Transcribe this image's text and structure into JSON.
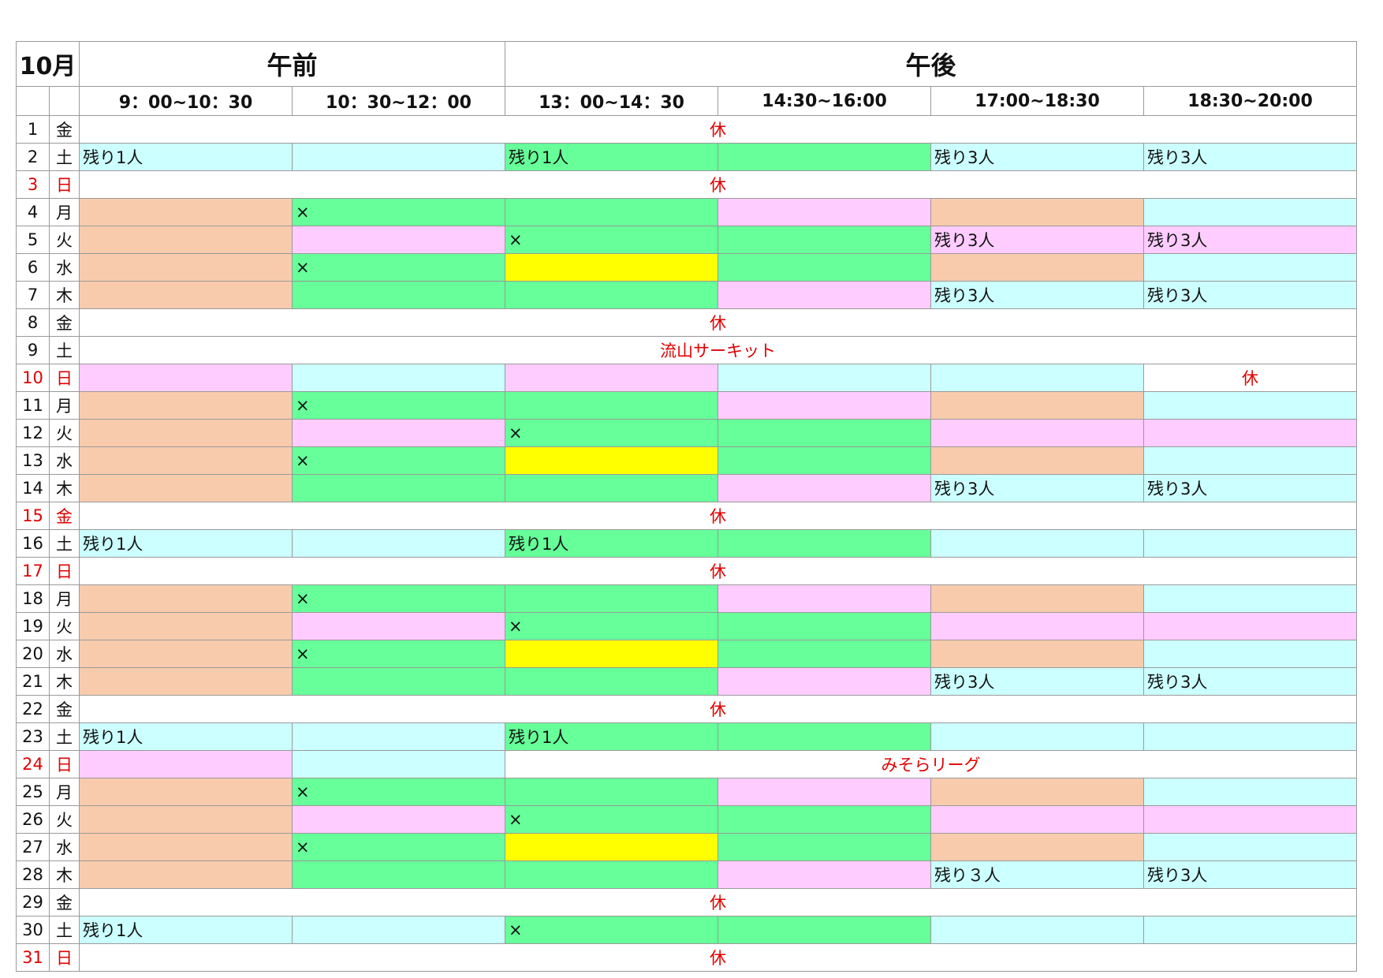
{
  "header": {
    "month": "10月",
    "morning": "午前",
    "afternoon": "午後",
    "slots": [
      "9：00~10：30",
      "10：30~12：00",
      "13：00~14：30",
      "14:30~16:00",
      "17:00~18:30",
      "18:30~20:00"
    ]
  },
  "colors": {
    "o": "#f8cbad",
    "g": "#66ff99",
    "p": "#ffccff",
    "c": "#ccffff",
    "y": "#ffff00",
    "w": "#ffffff",
    "red": "#e00000"
  },
  "rows": [
    {
      "day": "1",
      "wd": "金",
      "red": false,
      "full": "休"
    },
    {
      "day": "2",
      "wd": "土",
      "red": false,
      "cells": [
        {
          "c": "c",
          "t": "残り1人"
        },
        {
          "c": "c",
          "t": ""
        },
        {
          "c": "g",
          "t": "残り1人"
        },
        {
          "c": "g",
          "t": ""
        },
        {
          "c": "c",
          "t": "残り3人"
        },
        {
          "c": "c",
          "t": "残り3人"
        }
      ]
    },
    {
      "day": "3",
      "wd": "日",
      "red": true,
      "full": "休"
    },
    {
      "day": "4",
      "wd": "月",
      "red": false,
      "cells": [
        {
          "c": "o",
          "t": ""
        },
        {
          "c": "g",
          "t": "×"
        },
        {
          "c": "g",
          "t": ""
        },
        {
          "c": "p",
          "t": ""
        },
        {
          "c": "o",
          "t": ""
        },
        {
          "c": "c",
          "t": ""
        }
      ]
    },
    {
      "day": "5",
      "wd": "火",
      "red": false,
      "cells": [
        {
          "c": "o",
          "t": ""
        },
        {
          "c": "p",
          "t": ""
        },
        {
          "c": "g",
          "t": "×"
        },
        {
          "c": "g",
          "t": ""
        },
        {
          "c": "p",
          "t": "残り3人"
        },
        {
          "c": "p",
          "t": "残り3人"
        }
      ]
    },
    {
      "day": "6",
      "wd": "水",
      "red": false,
      "cells": [
        {
          "c": "o",
          "t": ""
        },
        {
          "c": "g",
          "t": "×"
        },
        {
          "c": "y",
          "t": ""
        },
        {
          "c": "g",
          "t": ""
        },
        {
          "c": "o",
          "t": ""
        },
        {
          "c": "c",
          "t": ""
        }
      ]
    },
    {
      "day": "7",
      "wd": "木",
      "red": false,
      "cells": [
        {
          "c": "o",
          "t": ""
        },
        {
          "c": "g",
          "t": ""
        },
        {
          "c": "g",
          "t": ""
        },
        {
          "c": "p",
          "t": ""
        },
        {
          "c": "c",
          "t": "残り3人"
        },
        {
          "c": "c",
          "t": "残り3人"
        }
      ]
    },
    {
      "day": "8",
      "wd": "金",
      "red": false,
      "full": "休"
    },
    {
      "day": "9",
      "wd": "土",
      "red": false,
      "full": "流山サーキット"
    },
    {
      "day": "10",
      "wd": "日",
      "red": true,
      "cells": [
        {
          "c": "p",
          "t": ""
        },
        {
          "c": "c",
          "t": ""
        },
        {
          "c": "p",
          "t": ""
        },
        {
          "c": "c",
          "t": ""
        },
        {
          "c": "c",
          "t": ""
        },
        {
          "c": "w",
          "t": "休",
          "closed": true
        }
      ]
    },
    {
      "day": "11",
      "wd": "月",
      "red": false,
      "cells": [
        {
          "c": "o",
          "t": ""
        },
        {
          "c": "g",
          "t": "×"
        },
        {
          "c": "g",
          "t": ""
        },
        {
          "c": "p",
          "t": ""
        },
        {
          "c": "o",
          "t": ""
        },
        {
          "c": "c",
          "t": ""
        }
      ]
    },
    {
      "day": "12",
      "wd": "火",
      "red": false,
      "cells": [
        {
          "c": "o",
          "t": ""
        },
        {
          "c": "p",
          "t": ""
        },
        {
          "c": "g",
          "t": "×"
        },
        {
          "c": "g",
          "t": ""
        },
        {
          "c": "p",
          "t": ""
        },
        {
          "c": "p",
          "t": ""
        }
      ]
    },
    {
      "day": "13",
      "wd": "水",
      "red": false,
      "cells": [
        {
          "c": "o",
          "t": ""
        },
        {
          "c": "g",
          "t": "×"
        },
        {
          "c": "y",
          "t": ""
        },
        {
          "c": "g",
          "t": ""
        },
        {
          "c": "o",
          "t": ""
        },
        {
          "c": "c",
          "t": ""
        }
      ]
    },
    {
      "day": "14",
      "wd": "木",
      "red": false,
      "cells": [
        {
          "c": "o",
          "t": ""
        },
        {
          "c": "g",
          "t": ""
        },
        {
          "c": "g",
          "t": ""
        },
        {
          "c": "p",
          "t": ""
        },
        {
          "c": "c",
          "t": "残り3人"
        },
        {
          "c": "c",
          "t": "残り3人"
        }
      ]
    },
    {
      "day": "15",
      "wd": "金",
      "red": true,
      "full": "休"
    },
    {
      "day": "16",
      "wd": "土",
      "red": false,
      "cells": [
        {
          "c": "c",
          "t": "残り1人"
        },
        {
          "c": "c",
          "t": ""
        },
        {
          "c": "g",
          "t": "残り1人"
        },
        {
          "c": "g",
          "t": ""
        },
        {
          "c": "c",
          "t": ""
        },
        {
          "c": "c",
          "t": ""
        }
      ]
    },
    {
      "day": "17",
      "wd": "日",
      "red": true,
      "full": "休"
    },
    {
      "day": "18",
      "wd": "月",
      "red": false,
      "cells": [
        {
          "c": "o",
          "t": ""
        },
        {
          "c": "g",
          "t": "×"
        },
        {
          "c": "g",
          "t": ""
        },
        {
          "c": "p",
          "t": ""
        },
        {
          "c": "o",
          "t": ""
        },
        {
          "c": "c",
          "t": ""
        }
      ]
    },
    {
      "day": "19",
      "wd": "火",
      "red": false,
      "cells": [
        {
          "c": "o",
          "t": ""
        },
        {
          "c": "p",
          "t": ""
        },
        {
          "c": "g",
          "t": "×"
        },
        {
          "c": "g",
          "t": ""
        },
        {
          "c": "p",
          "t": ""
        },
        {
          "c": "p",
          "t": ""
        }
      ]
    },
    {
      "day": "20",
      "wd": "水",
      "red": false,
      "cells": [
        {
          "c": "o",
          "t": ""
        },
        {
          "c": "g",
          "t": "×"
        },
        {
          "c": "y",
          "t": ""
        },
        {
          "c": "g",
          "t": ""
        },
        {
          "c": "o",
          "t": ""
        },
        {
          "c": "c",
          "t": ""
        }
      ]
    },
    {
      "day": "21",
      "wd": "木",
      "red": false,
      "cells": [
        {
          "c": "o",
          "t": ""
        },
        {
          "c": "g",
          "t": ""
        },
        {
          "c": "g",
          "t": ""
        },
        {
          "c": "p",
          "t": ""
        },
        {
          "c": "c",
          "t": "残り3人"
        },
        {
          "c": "c",
          "t": "残り3人"
        }
      ]
    },
    {
      "day": "22",
      "wd": "金",
      "red": false,
      "full": "休"
    },
    {
      "day": "23",
      "wd": "土",
      "red": false,
      "cells": [
        {
          "c": "c",
          "t": "残り1人"
        },
        {
          "c": "c",
          "t": ""
        },
        {
          "c": "g",
          "t": "残り1人"
        },
        {
          "c": "g",
          "t": ""
        },
        {
          "c": "c",
          "t": ""
        },
        {
          "c": "c",
          "t": ""
        }
      ]
    },
    {
      "day": "24",
      "wd": "日",
      "red": true,
      "cells": [
        {
          "c": "p",
          "t": ""
        },
        {
          "c": "c",
          "t": ""
        }
      ],
      "rest": "みそらリーグ"
    },
    {
      "day": "25",
      "wd": "月",
      "red": false,
      "cells": [
        {
          "c": "o",
          "t": ""
        },
        {
          "c": "g",
          "t": "×"
        },
        {
          "c": "g",
          "t": ""
        },
        {
          "c": "p",
          "t": ""
        },
        {
          "c": "o",
          "t": ""
        },
        {
          "c": "c",
          "t": ""
        }
      ]
    },
    {
      "day": "26",
      "wd": "火",
      "red": false,
      "cells": [
        {
          "c": "o",
          "t": ""
        },
        {
          "c": "p",
          "t": ""
        },
        {
          "c": "g",
          "t": "×"
        },
        {
          "c": "g",
          "t": ""
        },
        {
          "c": "p",
          "t": ""
        },
        {
          "c": "p",
          "t": ""
        }
      ]
    },
    {
      "day": "27",
      "wd": "水",
      "red": false,
      "cells": [
        {
          "c": "o",
          "t": ""
        },
        {
          "c": "g",
          "t": "×"
        },
        {
          "c": "y",
          "t": ""
        },
        {
          "c": "g",
          "t": ""
        },
        {
          "c": "o",
          "t": ""
        },
        {
          "c": "c",
          "t": ""
        }
      ]
    },
    {
      "day": "28",
      "wd": "木",
      "red": false,
      "cells": [
        {
          "c": "o",
          "t": ""
        },
        {
          "c": "g",
          "t": ""
        },
        {
          "c": "g",
          "t": ""
        },
        {
          "c": "p",
          "t": ""
        },
        {
          "c": "c",
          "t": "残り３人"
        },
        {
          "c": "c",
          "t": "残り3人"
        }
      ]
    },
    {
      "day": "29",
      "wd": "金",
      "red": false,
      "full": "休"
    },
    {
      "day": "30",
      "wd": "土",
      "red": false,
      "cells": [
        {
          "c": "c",
          "t": "残り1人"
        },
        {
          "c": "c",
          "t": ""
        },
        {
          "c": "g",
          "t": "×"
        },
        {
          "c": "g",
          "t": ""
        },
        {
          "c": "c",
          "t": ""
        },
        {
          "c": "c",
          "t": ""
        }
      ]
    },
    {
      "day": "31",
      "wd": "日",
      "red": true,
      "full": "休"
    }
  ]
}
